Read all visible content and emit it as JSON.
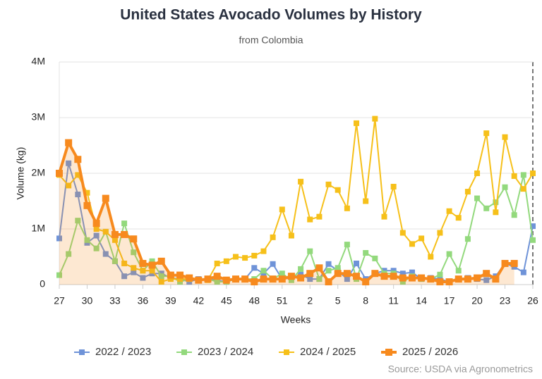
{
  "chart_data": {
    "type": "line",
    "title": "United States Avocado Volumes by History",
    "subtitle": "from Colombia",
    "x_label": "Weeks",
    "y_label": "Volume (kg)",
    "source": "Source: USDA via Agronometrics",
    "categories": [
      "27",
      null,
      null,
      "30",
      null,
      null,
      "33",
      null,
      null,
      "36",
      null,
      null,
      "39",
      null,
      null,
      "42",
      null,
      null,
      "45",
      null,
      null,
      "48",
      null,
      null,
      "51",
      null,
      null,
      "2",
      null,
      null,
      "5",
      null,
      null,
      "8",
      null,
      null,
      "11",
      null,
      null,
      "14",
      null,
      null,
      "17",
      null,
      null,
      "20",
      null,
      null,
      "23",
      null,
      null,
      "26"
    ],
    "ylim": [
      0,
      4000000
    ],
    "yticks": [
      0,
      {
        "value": 1000000,
        "label": "1M"
      },
      {
        "value": 2000000,
        "label": "2M"
      },
      {
        "value": 3000000,
        "label": "3M"
      },
      {
        "value": 4000000,
        "label": "4M"
      }
    ],
    "grid": true,
    "legend": "bottom",
    "series": [
      {
        "name": "2022 / 2023",
        "color": "#6f93d8",
        "values": [
          830000,
          2180000,
          1620000,
          750000,
          880000,
          550000,
          420000,
          150000,
          220000,
          120000,
          200000,
          200000,
          120000,
          100000,
          50000,
          100000,
          100000,
          80000,
          50000,
          100000,
          100000,
          300000,
          200000,
          370000,
          100000,
          120000,
          180000,
          100000,
          100000,
          370000,
          250000,
          100000,
          380000,
          100000,
          200000,
          250000,
          250000,
          200000,
          220000,
          100000,
          120000,
          100000,
          50000,
          100000,
          120000,
          100000,
          80000,
          150000,
          380000,
          320000,
          220000,
          1050000
        ]
      },
      {
        "name": "2023 / 2024",
        "color": "#93d97d",
        "values": [
          170000,
          550000,
          1150000,
          800000,
          650000,
          950000,
          420000,
          1100000,
          580000,
          250000,
          420000,
          150000,
          150000,
          50000,
          100000,
          80000,
          100000,
          50000,
          50000,
          100000,
          100000,
          100000,
          250000,
          100000,
          200000,
          80000,
          280000,
          600000,
          100000,
          250000,
          300000,
          720000,
          100000,
          570000,
          470000,
          200000,
          200000,
          50000,
          150000,
          100000,
          100000,
          180000,
          550000,
          250000,
          820000,
          1550000,
          1370000,
          1480000,
          1750000,
          1250000,
          1970000,
          800000
        ]
      },
      {
        "name": "2024 / 2025",
        "color": "#f6c01a",
        "values": [
          1970000,
          1780000,
          1970000,
          1650000,
          1000000,
          950000,
          800000,
          380000,
          300000,
          250000,
          250000,
          50000,
          100000,
          100000,
          100000,
          80000,
          80000,
          380000,
          420000,
          500000,
          480000,
          520000,
          600000,
          850000,
          1350000,
          880000,
          1850000,
          1170000,
          1220000,
          1800000,
          1700000,
          1370000,
          2900000,
          1500000,
          2980000,
          1220000,
          1760000,
          930000,
          730000,
          830000,
          500000,
          930000,
          1320000,
          1200000,
          1670000,
          2000000,
          2720000,
          1300000,
          2650000,
          1950000,
          1720000,
          2000000
        ]
      },
      {
        "name": "2025 / 2026",
        "color": "#f78a1e",
        "area": true,
        "values": [
          2000000,
          2550000,
          2250000,
          1420000,
          1100000,
          1550000,
          900000,
          900000,
          820000,
          380000,
          350000,
          420000,
          170000,
          170000,
          120000,
          80000,
          100000,
          150000,
          80000,
          100000,
          100000,
          50000,
          100000,
          100000,
          100000,
          150000,
          120000,
          200000,
          300000,
          50000,
          200000,
          200000,
          150000,
          50000,
          200000,
          150000,
          150000,
          120000,
          120000,
          120000,
          100000,
          50000,
          50000,
          100000,
          100000,
          120000,
          200000,
          100000,
          380000,
          380000,
          null,
          null
        ]
      }
    ]
  }
}
